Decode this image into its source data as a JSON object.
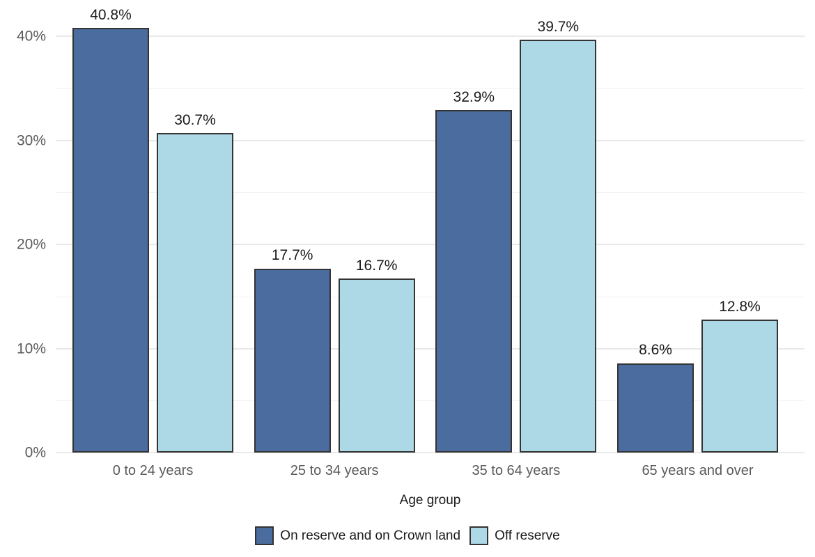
{
  "chart_data": {
    "type": "bar",
    "title": "",
    "xlabel": "Age group",
    "ylabel": "",
    "categories": [
      "0 to 24 years",
      "25 to 34 years",
      "35 to 64 years",
      "65 years and over"
    ],
    "series": [
      {
        "name": "On reserve and on Crown land",
        "color": "#4b6c9e",
        "values": [
          40.8,
          17.7,
          32.9,
          8.6
        ],
        "value_labels": [
          "40.8%",
          "17.7%",
          "32.9%",
          "8.6%"
        ]
      },
      {
        "name": "Off reserve",
        "color": "#add8e6",
        "values": [
          30.7,
          16.7,
          39.7,
          12.8
        ],
        "value_labels": [
          "30.7%",
          "16.7%",
          "39.7%",
          "12.8%"
        ]
      }
    ],
    "ylim": [
      0,
      43.5
    ],
    "yticks": [
      {
        "value": 0,
        "label": "0%"
      },
      {
        "value": 10,
        "label": "10%"
      },
      {
        "value": 20,
        "label": "20%"
      },
      {
        "value": 30,
        "label": "30%"
      },
      {
        "value": 40,
        "label": "40%"
      }
    ],
    "minor_ticks": [
      5,
      15,
      25,
      35
    ],
    "grid": "horizontal",
    "legend_position": "bottom",
    "colors": {
      "background": "#ffffff",
      "bar_border": "#333333",
      "grid_major": "#e9e9e9",
      "grid_minor": "#f3f3f3",
      "axis_tick_text": "#5a5a5a",
      "label_text": "#1a1a1a"
    }
  }
}
